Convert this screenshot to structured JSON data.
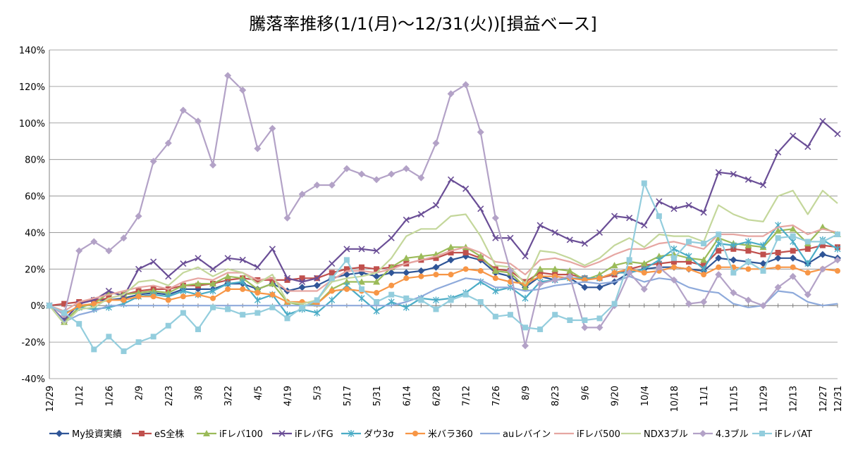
{
  "chart_data": {
    "type": "line",
    "title": "騰落率推移(1/1(月)～12/31(火))[損益ベース]",
    "ylim": [
      -40,
      140
    ],
    "y_tick_labels": [
      "-40%",
      "-20%",
      "0%",
      "20%",
      "40%",
      "60%",
      "80%",
      "100%",
      "120%",
      "140%"
    ],
    "grid": true,
    "legend_position": "bottom",
    "categories": [
      "12/29",
      "1/5",
      "1/12",
      "1/19",
      "1/26",
      "2/2",
      "2/9",
      "2/16",
      "2/23",
      "3/1",
      "3/8",
      "3/15",
      "3/22",
      "3/29",
      "4/5",
      "4/12",
      "4/19",
      "4/26",
      "5/3",
      "5/10",
      "5/17",
      "5/24",
      "5/31",
      "6/7",
      "6/14",
      "6/21",
      "6/28",
      "7/5",
      "7/12",
      "7/19",
      "7/26",
      "8/2",
      "8/9",
      "8/16",
      "8/23",
      "8/30",
      "9/6",
      "9/13",
      "9/20",
      "9/27",
      "10/4",
      "10/11",
      "10/18",
      "10/25",
      "11/1",
      "11/8",
      "11/15",
      "11/22",
      "11/29",
      "12/6",
      "12/13",
      "12/20",
      "12/27",
      "12/31"
    ],
    "series": [
      {
        "name": "My投資実績",
        "color": "#2f5597",
        "marker": "diamond",
        "values": [
          0,
          -8,
          1,
          3,
          3,
          4,
          6,
          7,
          6,
          9,
          9,
          9,
          12,
          12,
          9,
          12,
          8,
          10,
          11,
          15,
          17,
          18,
          16,
          18,
          18,
          19,
          21,
          25,
          27,
          25,
          18,
          16,
          10,
          16,
          14,
          15,
          10,
          10,
          13,
          18,
          20,
          21,
          21,
          20,
          19,
          26,
          25,
          24,
          23,
          26,
          26,
          23,
          28,
          26
        ]
      },
      {
        "name": "eS全株",
        "color": "#c0504d",
        "marker": "square",
        "values": [
          0,
          1,
          2,
          3,
          4,
          6,
          8,
          9,
          9,
          11,
          11,
          12,
          14,
          15,
          14,
          14,
          14,
          15,
          15,
          18,
          20,
          21,
          20,
          21,
          23,
          25,
          26,
          29,
          29,
          26,
          20,
          19,
          13,
          18,
          17,
          17,
          15,
          15,
          17,
          20,
          22,
          23,
          24,
          24,
          22,
          30,
          31,
          30,
          28,
          29,
          30,
          31,
          33,
          32
        ]
      },
      {
        "name": "iFレバ100",
        "color": "#9bbb59",
        "marker": "triangle",
        "values": [
          0,
          -9,
          -1,
          1,
          7,
          6,
          7,
          8,
          7,
          11,
          12,
          12,
          16,
          15,
          9,
          12,
          2,
          0,
          1,
          9,
          13,
          13,
          13,
          21,
          26,
          27,
          28,
          32,
          32,
          27,
          19,
          18,
          10,
          20,
          20,
          19,
          14,
          17,
          22,
          24,
          23,
          27,
          28,
          26,
          25,
          37,
          34,
          33,
          32,
          41,
          42,
          34,
          43,
          39
        ]
      },
      {
        "name": "iFレバFG",
        "color": "#6a4e96",
        "marker": "x",
        "values": [
          0,
          -8,
          1,
          3,
          8,
          5,
          20,
          24,
          16,
          23,
          26,
          20,
          26,
          25,
          21,
          31,
          15,
          13,
          15,
          23,
          31,
          31,
          30,
          37,
          47,
          50,
          55,
          69,
          64,
          53,
          37,
          37,
          27,
          44,
          40,
          36,
          34,
          40,
          49,
          48,
          44,
          57,
          53,
          55,
          51,
          73,
          72,
          69,
          66,
          84,
          93,
          87,
          101,
          94
        ]
      },
      {
        "name": "ダウ3σ",
        "color": "#4bacc6",
        "marker": "star",
        "values": [
          0,
          -4,
          -1,
          -2,
          -1,
          1,
          5,
          6,
          5,
          8,
          6,
          8,
          12,
          13,
          3,
          6,
          -5,
          -2,
          -4,
          3,
          11,
          4,
          -3,
          2,
          -1,
          4,
          3,
          4,
          7,
          13,
          8,
          10,
          4,
          13,
          14,
          15,
          15,
          15,
          18,
          18,
          20,
          25,
          31,
          27,
          20,
          34,
          33,
          35,
          33,
          44,
          35,
          23,
          36,
          31
        ]
      },
      {
        "name": "米バラ360",
        "color": "#f79646",
        "marker": "circle",
        "values": [
          0,
          -5,
          0,
          1,
          3,
          3,
          5,
          5,
          3,
          5,
          6,
          4,
          9,
          9,
          7,
          6,
          2,
          2,
          1,
          8,
          9,
          8,
          7,
          11,
          15,
          16,
          17,
          17,
          20,
          19,
          15,
          13,
          12,
          16,
          16,
          15,
          14,
          15,
          18,
          20,
          18,
          19,
          21,
          20,
          17,
          21,
          21,
          20,
          20,
          21,
          21,
          18,
          20,
          19
        ]
      },
      {
        "name": "auレバイン",
        "color": "#8eaadb",
        "marker": "none",
        "values": [
          0,
          -9,
          -5,
          -3,
          0,
          0,
          0,
          0,
          0,
          0,
          0,
          0,
          0,
          0,
          0,
          0,
          0,
          0,
          0,
          0,
          0,
          0,
          0,
          0,
          2,
          5,
          9,
          12,
          15,
          14,
          10,
          10,
          8,
          9,
          11,
          12,
          13,
          12,
          13,
          16,
          13,
          15,
          14,
          10,
          8,
          7,
          1,
          -1,
          0,
          8,
          7,
          2,
          0,
          1
        ]
      },
      {
        "name": "iFレバ500",
        "color": "#e6a6a2",
        "marker": "none",
        "values": [
          0,
          -3,
          2,
          4,
          6,
          8,
          10,
          11,
          9,
          13,
          15,
          14,
          18,
          18,
          14,
          15,
          8,
          8,
          8,
          14,
          19,
          19,
          18,
          20,
          23,
          25,
          27,
          30,
          32,
          29,
          24,
          23,
          17,
          25,
          26,
          24,
          21,
          24,
          28,
          31,
          31,
          34,
          35,
          33,
          31,
          39,
          39,
          38,
          38,
          43,
          44,
          39,
          42,
          40
        ]
      },
      {
        "name": "NDX3ブル",
        "color": "#c4d79b",
        "marker": "none",
        "values": [
          0,
          -10,
          -2,
          -1,
          4,
          6,
          13,
          14,
          11,
          18,
          21,
          16,
          20,
          18,
          12,
          17,
          2,
          1,
          3,
          13,
          15,
          16,
          18,
          26,
          38,
          42,
          42,
          49,
          50,
          38,
          22,
          21,
          12,
          30,
          29,
          26,
          22,
          26,
          33,
          37,
          32,
          39,
          38,
          38,
          35,
          55,
          50,
          47,
          46,
          60,
          63,
          50,
          63,
          56
        ]
      },
      {
        "name": "4.3ブル",
        "color": "#b3a2c7",
        "marker": "diamond",
        "values": [
          0,
          -5,
          30,
          35,
          30,
          37,
          49,
          79,
          89,
          107,
          101,
          77,
          126,
          118,
          86,
          97,
          48,
          61,
          66,
          66,
          75,
          72,
          69,
          72,
          75,
          70,
          89,
          116,
          121,
          95,
          48,
          19,
          -22,
          12,
          14,
          16,
          -12,
          -12,
          0,
          18,
          9,
          21,
          14,
          1,
          2,
          17,
          7,
          3,
          0,
          10,
          16,
          6,
          20,
          25
        ]
      },
      {
        "name": "iFレバAT",
        "color": "#93cddd",
        "marker": "square",
        "values": [
          0,
          -4,
          -10,
          -24,
          -17,
          -25,
          -20,
          -17,
          -11,
          -4,
          -13,
          -1,
          -2,
          -5,
          -4,
          -1,
          -7,
          -1,
          3,
          15,
          25,
          9,
          2,
          6,
          4,
          3,
          -2,
          3,
          6,
          2,
          -6,
          -5,
          -12,
          -13,
          -5,
          -8,
          -8,
          -7,
          1,
          25,
          67,
          49,
          26,
          35,
          34,
          39,
          18,
          24,
          19,
          37,
          38,
          35,
          35,
          39
        ]
      }
    ]
  }
}
